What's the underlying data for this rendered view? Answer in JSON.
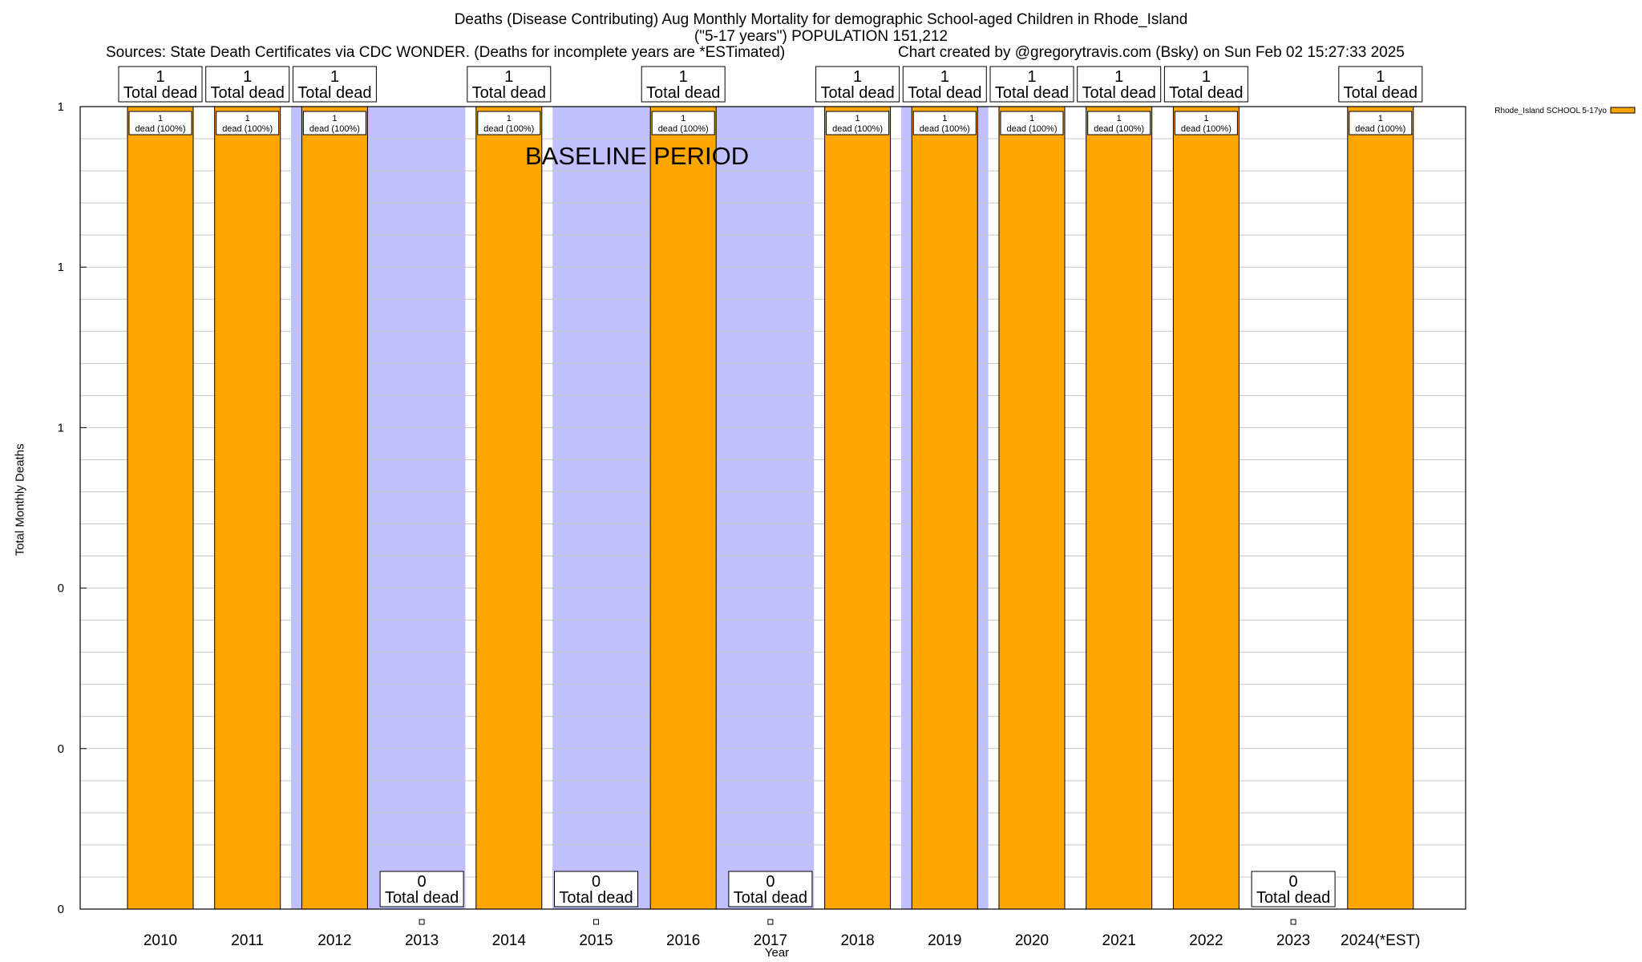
{
  "chart_data": {
    "type": "bar",
    "title_line1": "Deaths (Disease Contributing) Aug Monthly Mortality for demographic School-aged Children in Rhode_Island",
    "title_line2": "(\"5-17 years\") POPULATION 151,212",
    "sources": "Sources: State Death Certificates via CDC WONDER. (Deaths for incomplete years are *ESTimated)",
    "credit": "Chart created by @gregorytravis.com (Bsky) on Sun Feb 02 15:27:33 2025",
    "ylabel": "Total Monthly Deaths",
    "xlabel": "Year",
    "categories": [
      "2010",
      "2011",
      "2012",
      "2013",
      "2014",
      "2015",
      "2016",
      "2017",
      "2018",
      "2019",
      "2020",
      "2021",
      "2022",
      "2023",
      "2024(*EST)"
    ],
    "values": [
      1,
      1,
      1,
      0,
      1,
      0,
      1,
      0,
      1,
      1,
      1,
      1,
      1,
      0,
      1
    ],
    "bar_labels": [
      "dead (100%)",
      "dead (100%)",
      "dead (100%)",
      "",
      "dead (100%)",
      "",
      "dead (100%)",
      "",
      "dead (100%)",
      "dead (100%)",
      "dead (100%)",
      "dead (100%)",
      "dead (100%)",
      "",
      "dead (100%)"
    ],
    "total_label": "Total dead",
    "ylim": [
      0,
      1
    ],
    "y_ticks": [
      {
        "value": 0,
        "label": "0"
      },
      {
        "value": 0.2,
        "label": "0"
      },
      {
        "value": 0.4,
        "label": "0"
      },
      {
        "value": 0.6,
        "label": "1"
      },
      {
        "value": 0.8,
        "label": "1"
      },
      {
        "value": 1.0,
        "label": "1"
      }
    ],
    "baseline_label": "BASELINE PERIOD",
    "baseline_spans": [
      [
        2011.5,
        2013.5
      ],
      [
        2014.5,
        2017.5
      ],
      [
        2018.5,
        2019.5
      ]
    ],
    "legend": [
      {
        "name": "Rhode_Island SCHOOL 5-17yo",
        "color": "#ffa500"
      }
    ],
    "legend_position": "top-right",
    "bar_color": "#ffa500",
    "baseline_color": "#c0c0ff"
  }
}
